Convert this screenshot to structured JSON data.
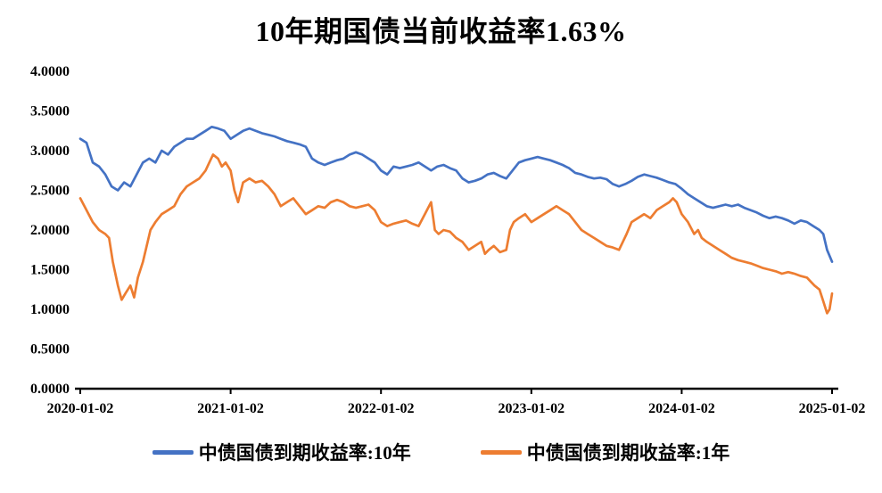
{
  "chart_data": {
    "type": "line",
    "title": "10年期国债当前收益率1.63%",
    "grid": false,
    "legend_position": "bottom",
    "x_axis": {
      "tick_labels": [
        "2020-01-02",
        "2021-01-02",
        "2022-01-02",
        "2023-01-02",
        "2024-01-02",
        "2025-01-02"
      ],
      "tick_positions_months": [
        0,
        12,
        24,
        36,
        48,
        60
      ],
      "range_months": [
        0,
        60
      ]
    },
    "y_axis": {
      "tick_labels": [
        "0.0000",
        "0.5000",
        "1.0000",
        "1.5000",
        "2.0000",
        "2.5000",
        "3.0000",
        "3.5000",
        "4.0000"
      ],
      "range": [
        0,
        4
      ]
    },
    "series": [
      {
        "name": "中债国债到期收益率:10年",
        "color": "#4472C4",
        "points": [
          [
            0,
            3.15
          ],
          [
            0.5,
            3.1
          ],
          [
            1,
            2.85
          ],
          [
            1.5,
            2.8
          ],
          [
            2,
            2.7
          ],
          [
            2.5,
            2.55
          ],
          [
            3,
            2.5
          ],
          [
            3.5,
            2.6
          ],
          [
            4,
            2.55
          ],
          [
            4.5,
            2.7
          ],
          [
            5,
            2.85
          ],
          [
            5.5,
            2.9
          ],
          [
            6,
            2.85
          ],
          [
            6.5,
            3.0
          ],
          [
            7,
            2.95
          ],
          [
            7.5,
            3.05
          ],
          [
            8,
            3.1
          ],
          [
            8.5,
            3.15
          ],
          [
            9,
            3.15
          ],
          [
            9.5,
            3.2
          ],
          [
            10,
            3.25
          ],
          [
            10.5,
            3.3
          ],
          [
            11,
            3.28
          ],
          [
            11.5,
            3.25
          ],
          [
            12,
            3.15
          ],
          [
            12.5,
            3.2
          ],
          [
            13,
            3.25
          ],
          [
            13.5,
            3.28
          ],
          [
            14,
            3.25
          ],
          [
            14.5,
            3.22
          ],
          [
            15,
            3.2
          ],
          [
            15.5,
            3.18
          ],
          [
            16,
            3.15
          ],
          [
            16.5,
            3.12
          ],
          [
            17,
            3.1
          ],
          [
            17.5,
            3.08
          ],
          [
            18,
            3.05
          ],
          [
            18.5,
            2.9
          ],
          [
            19,
            2.85
          ],
          [
            19.5,
            2.82
          ],
          [
            20,
            2.85
          ],
          [
            20.5,
            2.88
          ],
          [
            21,
            2.9
          ],
          [
            21.5,
            2.95
          ],
          [
            22,
            2.98
          ],
          [
            22.5,
            2.95
          ],
          [
            23,
            2.9
          ],
          [
            23.5,
            2.85
          ],
          [
            24,
            2.75
          ],
          [
            24.5,
            2.7
          ],
          [
            25,
            2.8
          ],
          [
            25.5,
            2.78
          ],
          [
            26,
            2.8
          ],
          [
            26.5,
            2.82
          ],
          [
            27,
            2.85
          ],
          [
            27.5,
            2.8
          ],
          [
            28,
            2.75
          ],
          [
            28.5,
            2.8
          ],
          [
            29,
            2.82
          ],
          [
            29.5,
            2.78
          ],
          [
            30,
            2.75
          ],
          [
            30.5,
            2.65
          ],
          [
            31,
            2.6
          ],
          [
            31.5,
            2.62
          ],
          [
            32,
            2.65
          ],
          [
            32.5,
            2.7
          ],
          [
            33,
            2.72
          ],
          [
            33.5,
            2.68
          ],
          [
            34,
            2.65
          ],
          [
            34.5,
            2.75
          ],
          [
            35,
            2.85
          ],
          [
            35.5,
            2.88
          ],
          [
            36,
            2.9
          ],
          [
            36.5,
            2.92
          ],
          [
            37,
            2.9
          ],
          [
            37.5,
            2.88
          ],
          [
            38,
            2.85
          ],
          [
            38.5,
            2.82
          ],
          [
            39,
            2.78
          ],
          [
            39.5,
            2.72
          ],
          [
            40,
            2.7
          ],
          [
            40.5,
            2.67
          ],
          [
            41,
            2.65
          ],
          [
            41.5,
            2.66
          ],
          [
            42,
            2.64
          ],
          [
            42.5,
            2.58
          ],
          [
            43,
            2.55
          ],
          [
            43.5,
            2.58
          ],
          [
            44,
            2.62
          ],
          [
            44.5,
            2.67
          ],
          [
            45,
            2.7
          ],
          [
            45.5,
            2.68
          ],
          [
            46,
            2.66
          ],
          [
            46.5,
            2.63
          ],
          [
            47,
            2.6
          ],
          [
            47.5,
            2.58
          ],
          [
            48,
            2.52
          ],
          [
            48.5,
            2.45
          ],
          [
            49,
            2.4
          ],
          [
            49.5,
            2.35
          ],
          [
            50,
            2.3
          ],
          [
            50.5,
            2.28
          ],
          [
            51,
            2.3
          ],
          [
            51.5,
            2.32
          ],
          [
            52,
            2.3
          ],
          [
            52.5,
            2.32
          ],
          [
            53,
            2.28
          ],
          [
            53.5,
            2.25
          ],
          [
            54,
            2.22
          ],
          [
            54.5,
            2.18
          ],
          [
            55,
            2.15
          ],
          [
            55.5,
            2.17
          ],
          [
            56,
            2.15
          ],
          [
            56.5,
            2.12
          ],
          [
            57,
            2.08
          ],
          [
            57.5,
            2.12
          ],
          [
            58,
            2.1
          ],
          [
            58.5,
            2.05
          ],
          [
            59,
            2.0
          ],
          [
            59.3,
            1.95
          ],
          [
            59.6,
            1.75
          ],
          [
            60,
            1.6
          ]
        ]
      },
      {
        "name": "中债国债到期收益率:1年",
        "color": "#ED7D31",
        "points": [
          [
            0,
            2.4
          ],
          [
            0.5,
            2.25
          ],
          [
            1,
            2.1
          ],
          [
            1.5,
            2.0
          ],
          [
            2,
            1.95
          ],
          [
            2.3,
            1.9
          ],
          [
            2.6,
            1.6
          ],
          [
            3,
            1.3
          ],
          [
            3.3,
            1.12
          ],
          [
            3.6,
            1.2
          ],
          [
            4,
            1.3
          ],
          [
            4.3,
            1.15
          ],
          [
            4.6,
            1.4
          ],
          [
            5,
            1.6
          ],
          [
            5.3,
            1.8
          ],
          [
            5.6,
            2.0
          ],
          [
            6,
            2.1
          ],
          [
            6.5,
            2.2
          ],
          [
            7,
            2.25
          ],
          [
            7.5,
            2.3
          ],
          [
            8,
            2.45
          ],
          [
            8.5,
            2.55
          ],
          [
            9,
            2.6
          ],
          [
            9.5,
            2.65
          ],
          [
            10,
            2.75
          ],
          [
            10.3,
            2.85
          ],
          [
            10.6,
            2.95
          ],
          [
            11,
            2.9
          ],
          [
            11.3,
            2.8
          ],
          [
            11.6,
            2.85
          ],
          [
            12,
            2.75
          ],
          [
            12.3,
            2.5
          ],
          [
            12.6,
            2.35
          ],
          [
            13,
            2.6
          ],
          [
            13.5,
            2.65
          ],
          [
            14,
            2.6
          ],
          [
            14.5,
            2.62
          ],
          [
            15,
            2.55
          ],
          [
            15.5,
            2.45
          ],
          [
            16,
            2.3
          ],
          [
            16.5,
            2.35
          ],
          [
            17,
            2.4
          ],
          [
            17.5,
            2.3
          ],
          [
            18,
            2.2
          ],
          [
            18.5,
            2.25
          ],
          [
            19,
            2.3
          ],
          [
            19.5,
            2.28
          ],
          [
            20,
            2.35
          ],
          [
            20.5,
            2.38
          ],
          [
            21,
            2.35
          ],
          [
            21.5,
            2.3
          ],
          [
            22,
            2.28
          ],
          [
            22.5,
            2.3
          ],
          [
            23,
            2.32
          ],
          [
            23.5,
            2.25
          ],
          [
            24,
            2.1
          ],
          [
            24.5,
            2.05
          ],
          [
            25,
            2.08
          ],
          [
            25.5,
            2.1
          ],
          [
            26,
            2.12
          ],
          [
            26.5,
            2.08
          ],
          [
            27,
            2.05
          ],
          [
            27.5,
            2.2
          ],
          [
            28,
            2.35
          ],
          [
            28.3,
            2.0
          ],
          [
            28.6,
            1.95
          ],
          [
            29,
            2.0
          ],
          [
            29.5,
            1.98
          ],
          [
            30,
            1.9
          ],
          [
            30.5,
            1.85
          ],
          [
            31,
            1.75
          ],
          [
            31.5,
            1.8
          ],
          [
            32,
            1.85
          ],
          [
            32.3,
            1.7
          ],
          [
            32.6,
            1.75
          ],
          [
            33,
            1.8
          ],
          [
            33.5,
            1.72
          ],
          [
            34,
            1.75
          ],
          [
            34.3,
            2.0
          ],
          [
            34.6,
            2.1
          ],
          [
            35,
            2.15
          ],
          [
            35.5,
            2.2
          ],
          [
            36,
            2.1
          ],
          [
            36.5,
            2.15
          ],
          [
            37,
            2.2
          ],
          [
            37.5,
            2.25
          ],
          [
            38,
            2.3
          ],
          [
            38.5,
            2.25
          ],
          [
            39,
            2.2
          ],
          [
            39.5,
            2.1
          ],
          [
            40,
            2.0
          ],
          [
            40.5,
            1.95
          ],
          [
            41,
            1.9
          ],
          [
            41.5,
            1.85
          ],
          [
            42,
            1.8
          ],
          [
            42.5,
            1.78
          ],
          [
            43,
            1.75
          ],
          [
            43.3,
            1.85
          ],
          [
            43.6,
            1.95
          ],
          [
            44,
            2.1
          ],
          [
            44.5,
            2.15
          ],
          [
            45,
            2.2
          ],
          [
            45.5,
            2.15
          ],
          [
            46,
            2.25
          ],
          [
            46.5,
            2.3
          ],
          [
            47,
            2.35
          ],
          [
            47.3,
            2.4
          ],
          [
            47.6,
            2.35
          ],
          [
            48,
            2.2
          ],
          [
            48.5,
            2.1
          ],
          [
            49,
            1.95
          ],
          [
            49.3,
            2.0
          ],
          [
            49.6,
            1.9
          ],
          [
            50,
            1.85
          ],
          [
            50.5,
            1.8
          ],
          [
            51,
            1.75
          ],
          [
            51.5,
            1.7
          ],
          [
            52,
            1.65
          ],
          [
            52.5,
            1.62
          ],
          [
            53,
            1.6
          ],
          [
            53.5,
            1.58
          ],
          [
            54,
            1.55
          ],
          [
            54.5,
            1.52
          ],
          [
            55,
            1.5
          ],
          [
            55.5,
            1.48
          ],
          [
            56,
            1.45
          ],
          [
            56.5,
            1.47
          ],
          [
            57,
            1.45
          ],
          [
            57.5,
            1.42
          ],
          [
            58,
            1.4
          ],
          [
            58.3,
            1.35
          ],
          [
            58.6,
            1.3
          ],
          [
            59,
            1.25
          ],
          [
            59.3,
            1.1
          ],
          [
            59.6,
            0.95
          ],
          [
            59.8,
            1.0
          ],
          [
            60,
            1.2
          ]
        ]
      }
    ]
  }
}
